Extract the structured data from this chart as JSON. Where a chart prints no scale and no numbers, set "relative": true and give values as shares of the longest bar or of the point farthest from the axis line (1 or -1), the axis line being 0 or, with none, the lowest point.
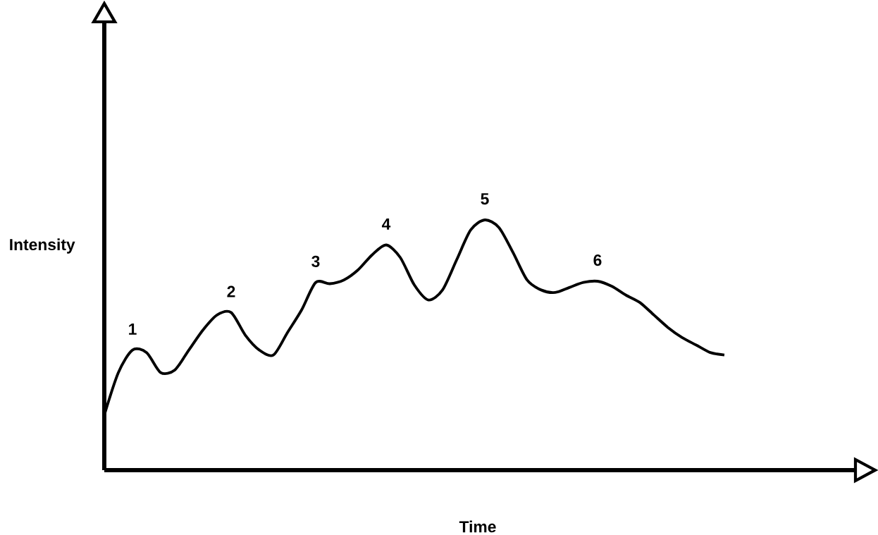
{
  "chart_data": {
    "type": "line",
    "relative": true,
    "xlabel": "Time",
    "ylabel": "Intensity",
    "categories": [
      null,
      null,
      null,
      null,
      null,
      null,
      null,
      null,
      null,
      null,
      null,
      null,
      null,
      null,
      null,
      null,
      null,
      null,
      null,
      null,
      null,
      null,
      null,
      null,
      null,
      null,
      null,
      null,
      null,
      null,
      null,
      null,
      null,
      null,
      null,
      null,
      null,
      null,
      null,
      null,
      null,
      null,
      null,
      null,
      null
    ],
    "series": [
      {
        "color": "#000000",
        "values": [
          0.22,
          0.39,
          0.48,
          0.47,
          0.39,
          0.4,
          0.48,
          0.56,
          0.62,
          0.63,
          0.54,
          0.48,
          0.46,
          0.55,
          0.64,
          0.75,
          0.745,
          0.76,
          0.8,
          0.86,
          0.9,
          0.85,
          0.74,
          0.68,
          0.72,
          0.84,
          0.96,
          1,
          0.97,
          0.87,
          0.76,
          0.72,
          0.71,
          0.73,
          0.75,
          0.755,
          0.735,
          0.7,
          0.67,
          0.62,
          0.57,
          0.53,
          0.5,
          0.47,
          0.46
        ]
      }
    ],
    "annotations": [
      "1",
      "2",
      "3",
      "4",
      "5",
      "6"
    ]
  }
}
